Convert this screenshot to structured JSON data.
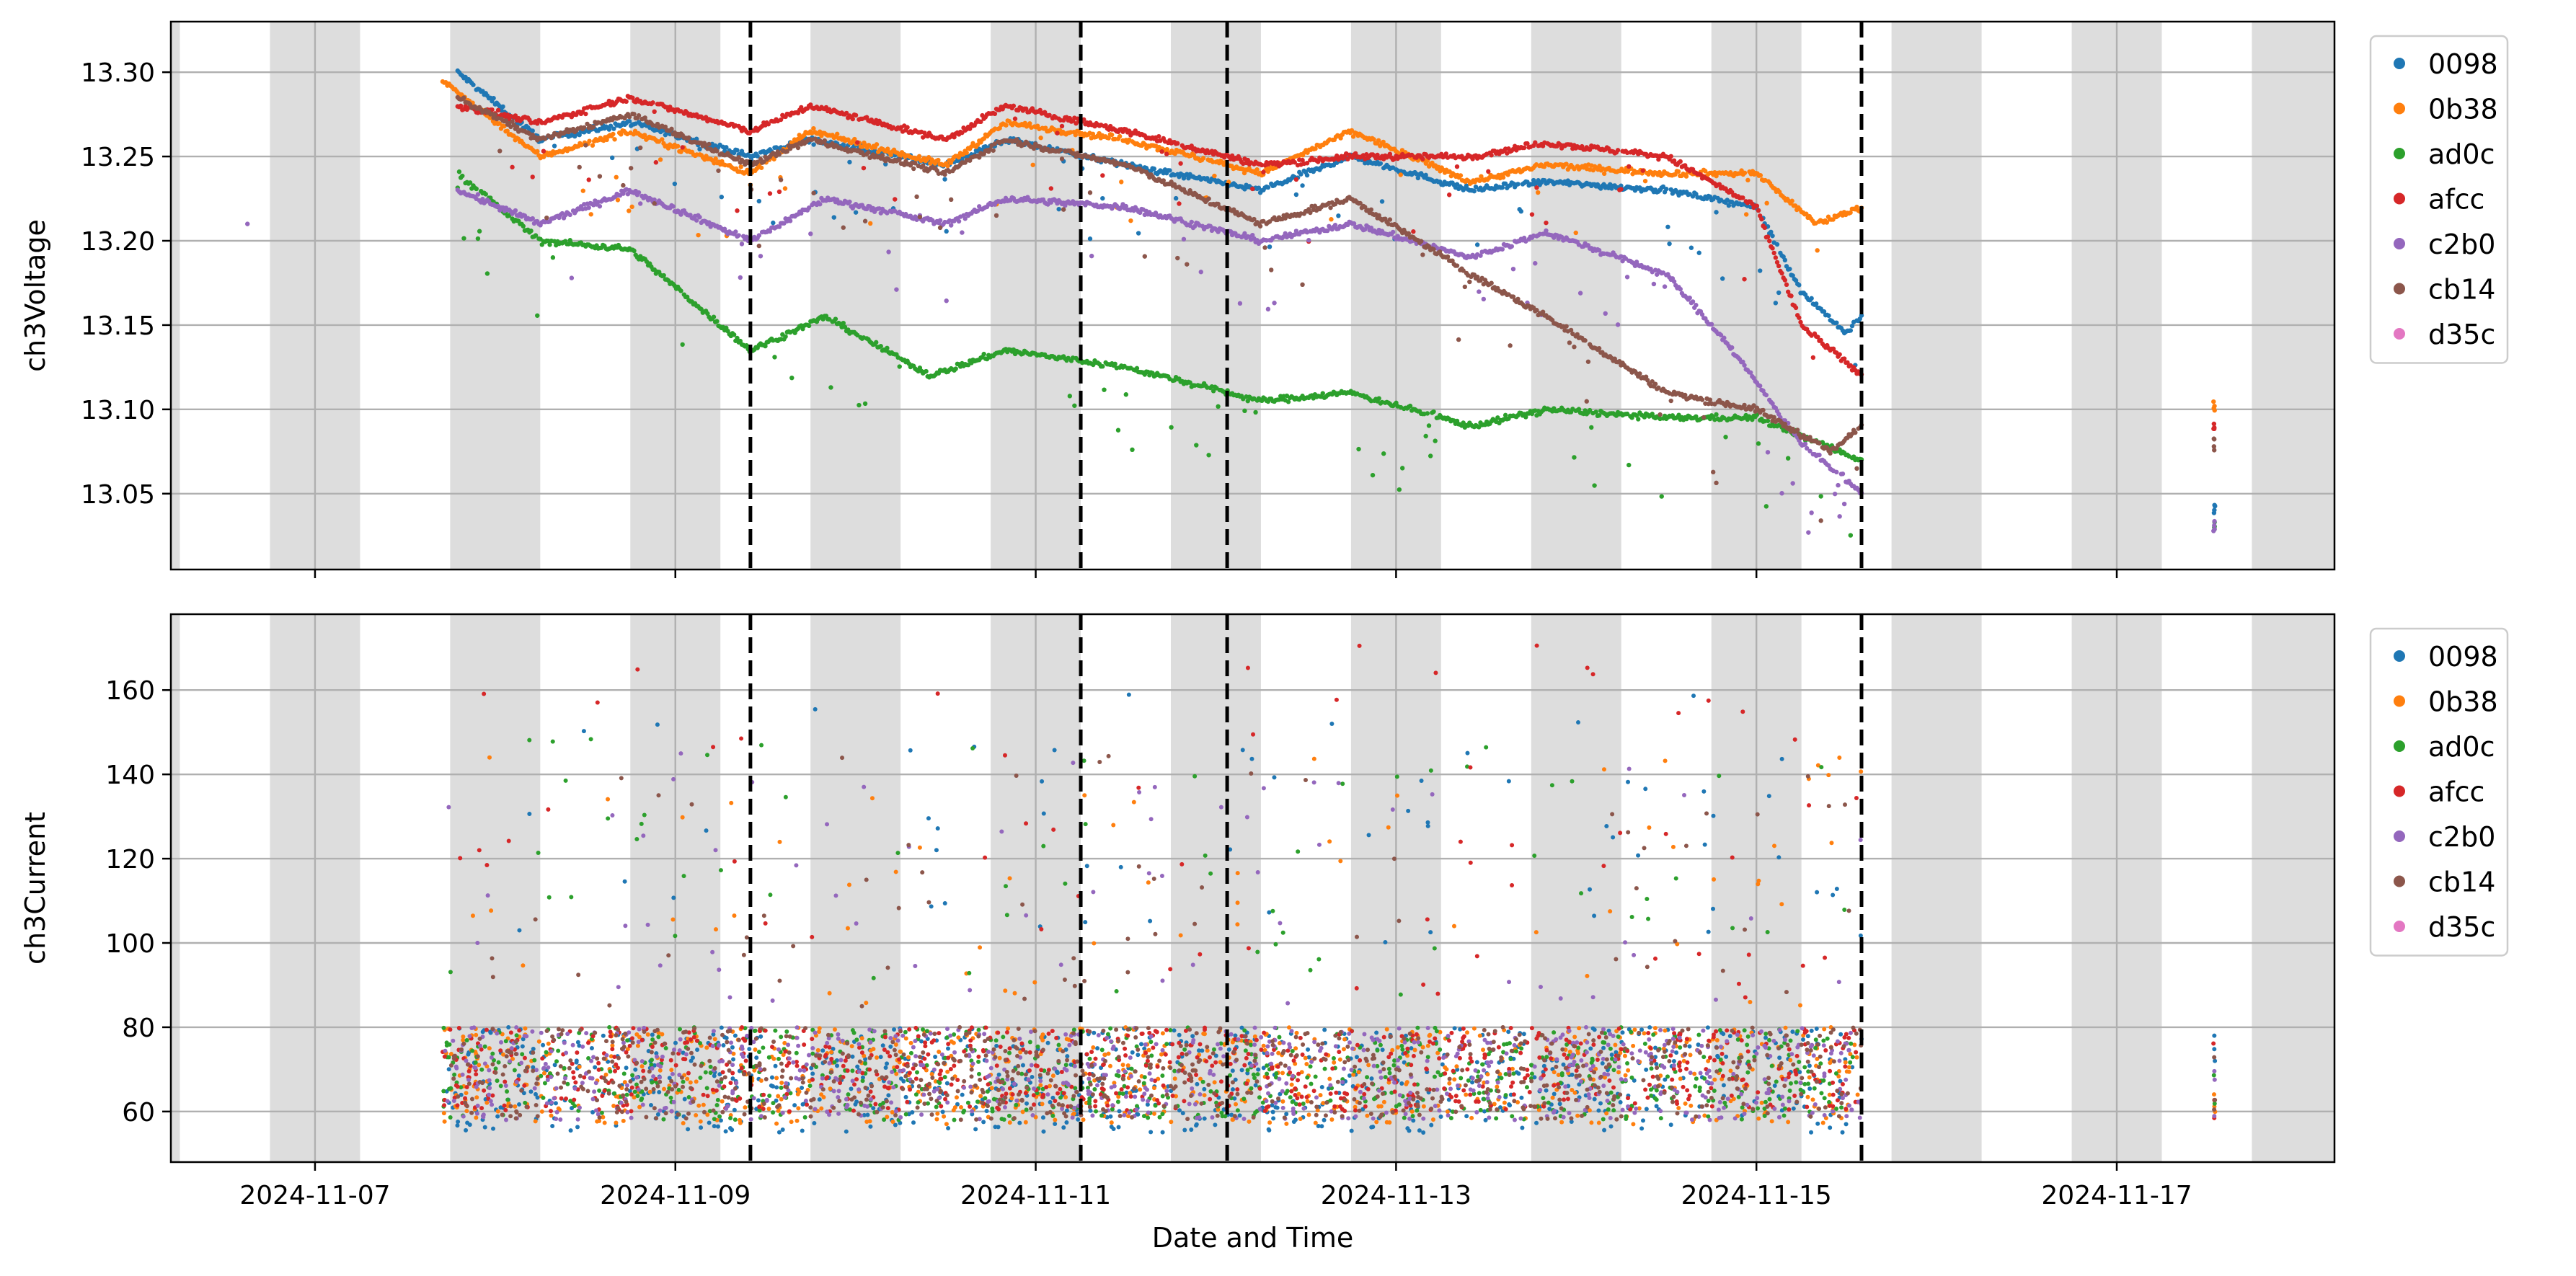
{
  "chart_data": [
    {
      "type": "scatter",
      "ylabel": "ch3Voltage",
      "xlabel": "",
      "x_range": [
        "2024-11-06T04:48",
        "2024-11-18T05:00"
      ],
      "ylim": [
        13.005,
        13.33
      ],
      "y_ticks": [
        13.05,
        13.1,
        13.15,
        13.2,
        13.25,
        13.3
      ],
      "y_tick_labels": [
        "13.05",
        "13.10",
        "13.15",
        "13.20",
        "13.25",
        "13.30"
      ],
      "grid": true,
      "legend_placement": "outside-right",
      "series": [
        {
          "name": "0098",
          "color": "#1f77b4",
          "points": [
            [
              "2024-11-07T19:00",
              13.3
            ],
            [
              "2024-11-08T06:00",
              13.26
            ],
            [
              "2024-11-08T18:00",
              13.27
            ],
            [
              "2024-11-09T10:00",
              13.25
            ],
            [
              "2024-11-09T18:00",
              13.26
            ],
            [
              "2024-11-10T12:00",
              13.245
            ],
            [
              "2024-11-10T20:00",
              13.26
            ],
            [
              "2024-11-11T12:00",
              13.245
            ],
            [
              "2024-11-12T06:00",
              13.23
            ],
            [
              "2024-11-12T18:00",
              13.25
            ],
            [
              "2024-11-13T10:00",
              13.23
            ],
            [
              "2024-11-13T20:00",
              13.235
            ],
            [
              "2024-11-14T12:00",
              13.23
            ],
            [
              "2024-11-15T00:00",
              13.22
            ],
            [
              "2024-11-15T06:00",
              13.17
            ],
            [
              "2024-11-15T12:00",
              13.145
            ],
            [
              "2024-11-15T14:00",
              13.155
            ],
            [
              "2024-11-17T13:00",
              13.04
            ]
          ]
        },
        {
          "name": "0b38",
          "color": "#ff7f0e",
          "points": [
            [
              "2024-11-07T17:00",
              13.295
            ],
            [
              "2024-11-08T06:00",
              13.25
            ],
            [
              "2024-11-08T18:00",
              13.265
            ],
            [
              "2024-11-09T10:00",
              13.24
            ],
            [
              "2024-11-09T18:00",
              13.265
            ],
            [
              "2024-11-10T12:00",
              13.245
            ],
            [
              "2024-11-10T20:00",
              13.27
            ],
            [
              "2024-11-11T12:00",
              13.26
            ],
            [
              "2024-11-12T06:00",
              13.24
            ],
            [
              "2024-11-12T18:00",
              13.265
            ],
            [
              "2024-11-13T10:00",
              13.235
            ],
            [
              "2024-11-13T20:00",
              13.245
            ],
            [
              "2024-11-14T12:00",
              13.24
            ],
            [
              "2024-11-15T00:00",
              13.24
            ],
            [
              "2024-11-15T08:00",
              13.21
            ],
            [
              "2024-11-15T14:00",
              13.22
            ],
            [
              "2024-11-17T13:00",
              13.1
            ]
          ]
        },
        {
          "name": "ad0c",
          "color": "#2ca02c",
          "points": [
            [
              "2024-11-07T19:00",
              13.24
            ],
            [
              "2024-11-08T06:00",
              13.2
            ],
            [
              "2024-11-08T18:00",
              13.195
            ],
            [
              "2024-11-09T10:00",
              13.135
            ],
            [
              "2024-11-09T20:00",
              13.155
            ],
            [
              "2024-11-10T10:00",
              13.12
            ],
            [
              "2024-11-10T20:00",
              13.135
            ],
            [
              "2024-11-11T12:00",
              13.125
            ],
            [
              "2024-11-12T06:00",
              13.105
            ],
            [
              "2024-11-12T18:00",
              13.11
            ],
            [
              "2024-11-13T10:00",
              13.09
            ],
            [
              "2024-11-13T20:00",
              13.1
            ],
            [
              "2024-11-14T12:00",
              13.095
            ],
            [
              "2024-11-15T00:00",
              13.095
            ],
            [
              "2024-11-15T14:00",
              13.07
            ],
            [
              "2024-11-17T13:00",
              13.03
            ]
          ]
        },
        {
          "name": "afcc",
          "color": "#d62728",
          "points": [
            [
              "2024-11-07T19:00",
              13.28
            ],
            [
              "2024-11-08T06:00",
              13.27
            ],
            [
              "2024-11-08T18:00",
              13.285
            ],
            [
              "2024-11-09T10:00",
              13.265
            ],
            [
              "2024-11-09T18:00",
              13.28
            ],
            [
              "2024-11-10T12:00",
              13.26
            ],
            [
              "2024-11-10T20:00",
              13.28
            ],
            [
              "2024-11-11T12:00",
              13.265
            ],
            [
              "2024-11-12T06:00",
              13.245
            ],
            [
              "2024-11-12T18:00",
              13.25
            ],
            [
              "2024-11-13T10:00",
              13.25
            ],
            [
              "2024-11-13T20:00",
              13.258
            ],
            [
              "2024-11-14T12:00",
              13.25
            ],
            [
              "2024-11-15T00:00",
              13.22
            ],
            [
              "2024-11-15T06:00",
              13.15
            ],
            [
              "2024-11-15T14:00",
              13.12
            ],
            [
              "2024-11-17T13:00",
              13.09
            ]
          ]
        },
        {
          "name": "c2b0",
          "color": "#9467bd",
          "points": [
            [
              "2024-11-07T19:00",
              13.23
            ],
            [
              "2024-11-08T06:00",
              13.21
            ],
            [
              "2024-11-08T18:00",
              13.23
            ],
            [
              "2024-11-09T10:00",
              13.2
            ],
            [
              "2024-11-09T20:00",
              13.225
            ],
            [
              "2024-11-10T12:00",
              13.21
            ],
            [
              "2024-11-10T20:00",
              13.225
            ],
            [
              "2024-11-11T12:00",
              13.22
            ],
            [
              "2024-11-12T06:00",
              13.2
            ],
            [
              "2024-11-12T18:00",
              13.21
            ],
            [
              "2024-11-13T10:00",
              13.19
            ],
            [
              "2024-11-13T20:00",
              13.205
            ],
            [
              "2024-11-14T12:00",
              13.18
            ],
            [
              "2024-11-14T20:00",
              13.14
            ],
            [
              "2024-11-15T06:00",
              13.08
            ],
            [
              "2024-11-15T14:00",
              13.05
            ],
            [
              "2024-11-17T13:00",
              13.03
            ]
          ]
        },
        {
          "name": "cb14",
          "color": "#8c564b",
          "points": [
            [
              "2024-11-07T19:00",
              13.285
            ],
            [
              "2024-11-08T06:00",
              13.26
            ],
            [
              "2024-11-08T18:00",
              13.275
            ],
            [
              "2024-11-09T10:00",
              13.245
            ],
            [
              "2024-11-09T18:00",
              13.26
            ],
            [
              "2024-11-10T12:00",
              13.24
            ],
            [
              "2024-11-10T20:00",
              13.26
            ],
            [
              "2024-11-11T12:00",
              13.245
            ],
            [
              "2024-11-12T06:00",
              13.21
            ],
            [
              "2024-11-12T18:00",
              13.225
            ],
            [
              "2024-11-13T10:00",
              13.18
            ],
            [
              "2024-11-13T20:00",
              13.155
            ],
            [
              "2024-11-14T12:00",
              13.11
            ],
            [
              "2024-11-15T00:00",
              13.1
            ],
            [
              "2024-11-15T10:00",
              13.075
            ],
            [
              "2024-11-15T14:00",
              13.09
            ],
            [
              "2024-11-17T13:00",
              13.08
            ]
          ]
        },
        {
          "name": "d35c",
          "color": "#e377c2",
          "points": []
        }
      ]
    },
    {
      "type": "scatter",
      "ylabel": "ch3Current",
      "xlabel": "Date and Time",
      "x_range": [
        "2024-11-06T04:48",
        "2024-11-18T05:00"
      ],
      "x_ticks": [
        "2024-11-07",
        "2024-11-09",
        "2024-11-11",
        "2024-11-13",
        "2024-11-15",
        "2024-11-17"
      ],
      "ylim": [
        48,
        178
      ],
      "y_ticks": [
        60,
        80,
        100,
        120,
        140,
        160
      ],
      "y_tick_labels": [
        "60",
        "80",
        "100",
        "120",
        "140",
        "160"
      ],
      "grid": true,
      "legend_placement": "outside-right",
      "data_window": [
        "2024-11-07T17:00",
        "2024-11-15T14:00"
      ],
      "late_readings": "2024-11-17T13:00",
      "series": [
        {
          "name": "0098",
          "color": "#1f77b4",
          "band": [
            55,
            80
          ],
          "outlier_band": [
            100,
            160
          ]
        },
        {
          "name": "0b38",
          "color": "#ff7f0e",
          "band": [
            57,
            80
          ],
          "outlier_band": [
            85,
            150
          ]
        },
        {
          "name": "ad0c",
          "color": "#2ca02c",
          "band": [
            58,
            80
          ],
          "outlier_band": [
            85,
            150
          ]
        },
        {
          "name": "afcc",
          "color": "#d62728",
          "band": [
            60,
            80
          ],
          "outlier_band": [
            85,
            172
          ]
        },
        {
          "name": "c2b0",
          "color": "#9467bd",
          "band": [
            58,
            80
          ],
          "outlier_band": [
            85,
            145
          ]
        },
        {
          "name": "cb14",
          "color": "#8c564b",
          "band": [
            58,
            80
          ],
          "outlier_band": [
            85,
            145
          ]
        },
        {
          "name": "d35c",
          "color": "#e377c2",
          "band": null,
          "outlier_band": null
        }
      ]
    }
  ],
  "shared": {
    "night_shading": [
      [
        "2024-11-06T00:00",
        "2024-11-06T06:00"
      ],
      [
        "2024-11-06T18:00",
        "2024-11-07T06:00"
      ],
      [
        "2024-11-07T18:00",
        "2024-11-08T06:00"
      ],
      [
        "2024-11-08T18:00",
        "2024-11-09T06:00"
      ],
      [
        "2024-11-09T18:00",
        "2024-11-10T06:00"
      ],
      [
        "2024-11-10T18:00",
        "2024-11-11T06:00"
      ],
      [
        "2024-11-11T18:00",
        "2024-11-12T06:00"
      ],
      [
        "2024-11-12T18:00",
        "2024-11-13T06:00"
      ],
      [
        "2024-11-13T18:00",
        "2024-11-14T06:00"
      ],
      [
        "2024-11-14T18:00",
        "2024-11-15T06:00"
      ],
      [
        "2024-11-15T18:00",
        "2024-11-16T06:00"
      ],
      [
        "2024-11-16T18:00",
        "2024-11-17T06:00"
      ],
      [
        "2024-11-17T18:00",
        "2024-11-18T06:00"
      ]
    ],
    "dashed_lines": [
      "2024-11-09T10:00",
      "2024-11-11T06:00",
      "2024-11-12T01:30",
      "2024-11-15T14:00"
    ]
  }
}
